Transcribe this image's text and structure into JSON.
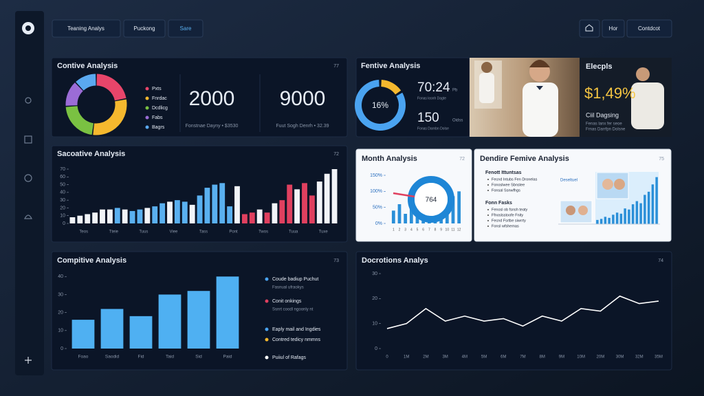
{
  "header": {
    "tabs": [
      "Teaning Analys",
      "Puckong",
      "Sare"
    ],
    "buttons": [
      "Hor",
      "Contdcot"
    ]
  },
  "promo": {
    "title": "Elecpls",
    "price": "$1,49%",
    "subtitle": "Ciil Dagsing",
    "lines": [
      "Fenas lanx fer seoe",
      "Frnas Darrfpn Dolsne"
    ]
  },
  "chart_data": [
    {
      "type": "donut",
      "title": "Contive Analysis",
      "badge": "77",
      "categories": [
        "Pxts",
        "Fnrdac",
        "Dcdlicg",
        "Fabs",
        "Bagrs"
      ],
      "values": [
        22,
        30,
        22,
        14,
        12
      ],
      "colors": [
        "#e8456a",
        "#f5b82e",
        "#7ac142",
        "#9b6cd6",
        "#5aa9f0"
      ],
      "kpis": [
        {
          "value": 2000,
          "label": "Fonstnae Dayny • $3530"
        },
        {
          "value": 9000,
          "label": "Fuut Sogh Denrh • 32.39"
        }
      ]
    },
    {
      "type": "gauge",
      "title": "Fentive Analysis",
      "values": [
        16,
        84
      ],
      "value_labels": [
        "16%"
      ],
      "colors": [
        "#f5b82e",
        "#4aa3f0"
      ],
      "stats": [
        {
          "value": "70:24",
          "unit": "Pb",
          "note": "Fonas losnh Dagte"
        },
        {
          "value": 150,
          "unit": "Oidss",
          "note": "Fonas Darnbn Dolse"
        }
      ]
    },
    {
      "type": "bar",
      "title": "Sacoative Analysis",
      "badge": "72",
      "values": [
        8,
        10,
        12,
        14,
        18,
        18,
        20,
        18,
        16,
        18,
        20,
        22,
        26,
        28,
        30,
        28,
        24,
        36,
        46,
        50,
        52,
        22,
        48,
        12,
        14,
        18,
        14,
        26,
        30,
        50,
        44,
        52,
        36,
        54,
        64,
        70
      ],
      "colors": [
        "#f2f4f8",
        "#f2f4f8",
        "#f2f4f8",
        "#f2f4f8",
        "#f2f4f8",
        "#f2f4f8",
        "#5ab0f0",
        "#f2f4f8",
        "#5ab0f0",
        "#5ab0f0",
        "#f2f4f8",
        "#5ab0f0",
        "#5ab0f0",
        "#f2f4f8",
        "#5ab0f0",
        "#5ab0f0",
        "#f2f4f8",
        "#5ab0f0",
        "#5ab0f0",
        "#5ab0f0",
        "#5ab0f0",
        "#5ab0f0",
        "#f2f4f8",
        "#e0405f",
        "#e0405f",
        "#f2f4f8",
        "#e0405f",
        "#f2f4f8",
        "#e0405f",
        "#e0405f",
        "#f2f4f8",
        "#e0405f",
        "#e0405f",
        "#f2f4f8",
        "#f2f4f8",
        "#f2f4f8"
      ],
      "axis_labels": [
        "Teos",
        "Tteie",
        "Tuus",
        "Viee",
        "Tass",
        "Pont",
        "Twos",
        "Tuua",
        "Tuxe"
      ],
      "ylim": [
        0,
        70
      ],
      "yticks": [
        0,
        10,
        20,
        30,
        40,
        50,
        60,
        70
      ]
    },
    {
      "type": "bar_donut",
      "title": "Month Analysis",
      "badge": "72",
      "categories": [
        "1",
        "2",
        "3",
        "4",
        "5",
        "6",
        "7",
        "8",
        "9",
        "10",
        "11",
        "12"
      ],
      "values": [
        40,
        60,
        30,
        95,
        55,
        35,
        70,
        45,
        80,
        60,
        85,
        100
      ],
      "color": "#2a8fd8",
      "center_label": "764",
      "ylim": [
        0,
        150
      ],
      "yticks": [
        {
          "value": 0,
          "label": "0%"
        },
        {
          "value": 50,
          "label": "50%"
        },
        {
          "value": 100,
          "label": "100%"
        },
        {
          "value": 150,
          "label": "150%"
        }
      ]
    },
    {
      "type": "bar",
      "title": "Dendire Femive Analysis",
      "badge": "75",
      "tag": "Deseltuel",
      "sections": [
        {
          "heading": "Fenott Ittuntsas",
          "items": [
            "Fecnd Intubs Fen Dronelas",
            "Fonoslwee Sbnstee",
            "Fonsal Ssnwfhgs"
          ]
        },
        {
          "heading": "Fonn Fasks",
          "items": [
            "Fenosl ob fsnsh teaty",
            "Ffnoslsstoofe Fnity",
            "Fecnd Fsrtbe siwrrty",
            "Fonsl wfshemas"
          ]
        }
      ],
      "values": [
        8,
        10,
        14,
        12,
        18,
        22,
        20,
        30,
        28,
        38,
        44,
        40,
        56,
        62,
        76,
        90
      ],
      "color": "#2a8fd8",
      "ylim": [
        0,
        100
      ]
    },
    {
      "type": "bar",
      "title": "Compitive Analysis",
      "badge": "73",
      "categories": [
        "Foao",
        "Saodid",
        "Fid",
        "Taid",
        "Sid",
        "Paid"
      ],
      "values": [
        16,
        22,
        18,
        30,
        32,
        40
      ],
      "color": "#4fb0f2",
      "ylim": [
        0,
        42
      ],
      "yticks": [
        0,
        10,
        20,
        30,
        40
      ],
      "notes": [
        {
          "color": "#4aa3f0",
          "text": "Coude badiup Puchut",
          "sub": "Fasnual ufraokys"
        },
        {
          "color": "#e0405f",
          "text": "Conit onkings",
          "sub": "Ssnrt coodl ngoonly nt"
        },
        {
          "color": "#4aa3f0",
          "text": "Eaply mail and Ingdies"
        },
        {
          "color": "#f5b82e",
          "text": "Contred tedicy nmmns"
        },
        {
          "color": "#ffffff",
          "text": "Puiiul of Rafags"
        }
      ]
    },
    {
      "type": "line",
      "title": "Docrotions Analys",
      "badge": "74",
      "categories": [
        "0",
        "1M",
        "2M",
        "3M",
        "4M",
        "5M",
        "6M",
        "7M",
        "8M",
        "9M",
        "10M",
        "20M",
        "30M",
        "32M",
        "35M"
      ],
      "values": [
        8,
        10,
        16,
        11,
        13,
        11,
        12,
        9,
        13,
        11,
        16,
        15,
        21,
        18,
        19
      ],
      "color": "#ffffff",
      "ylim": [
        0,
        30
      ],
      "yticks": [
        0,
        10,
        20,
        30
      ]
    }
  ]
}
